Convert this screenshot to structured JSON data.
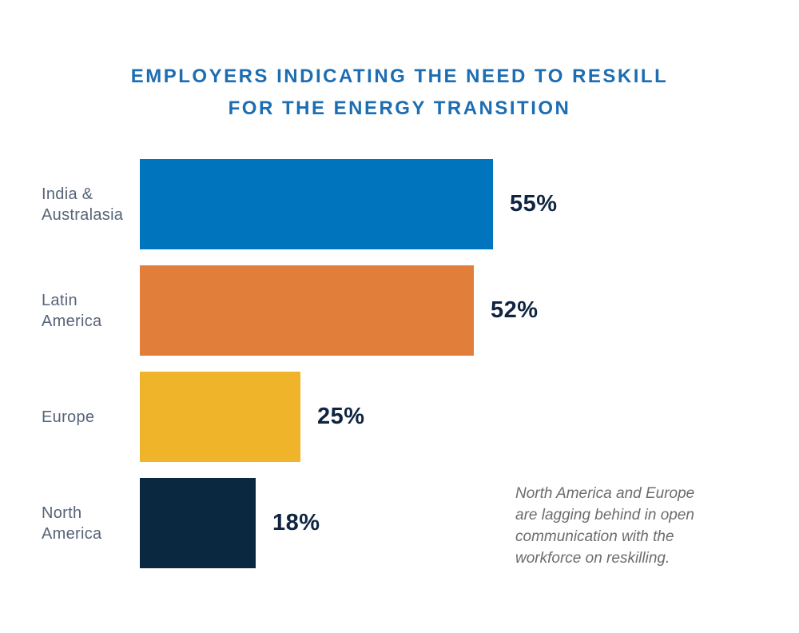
{
  "chart_data": {
    "type": "bar",
    "orientation": "horizontal",
    "title": "EMPLOYERS INDICATING THE NEED TO RESKILL FOR THE ENERGY TRANSITION",
    "title_lines": {
      "line1": "EMPLOYERS INDICATING THE NEED TO RESKILL",
      "line2": "FOR THE ENERGY TRANSITION"
    },
    "categories": [
      "India & Australasia",
      "Latin America",
      "Europe",
      "North America"
    ],
    "values": [
      55,
      52,
      25,
      18
    ],
    "xlim": [
      0,
      62
    ],
    "grid": false,
    "legend": "none",
    "axes_shown": false,
    "rows": [
      {
        "label": "India &\nAustralasia",
        "value": 55,
        "value_label": "55%",
        "color": "#0074BC"
      },
      {
        "label": "Latin\nAmerica",
        "value": 52,
        "value_label": "52%",
        "color": "#E07E3A"
      },
      {
        "label": "Europe",
        "value": 25,
        "value_label": "25%",
        "color": "#F0B42A"
      },
      {
        "label": "North\nAmerica",
        "value": 18,
        "value_label": "18%",
        "color": "#0A2940"
      }
    ],
    "annotation": "North America and Europe\nare lagging behind in open\ncommunication with the\nworkforce on reskilling.",
    "colors": {
      "title": "#1C6DB2",
      "bar_blue": "#0074BC",
      "bar_orange": "#E07E3A",
      "bar_amber": "#F0B42A",
      "bar_navy": "#0A2940",
      "value_text": "#0F2440",
      "category_text": "#566478",
      "annotation_text": "#6B6C6E",
      "background": "#FFFFFF"
    }
  }
}
